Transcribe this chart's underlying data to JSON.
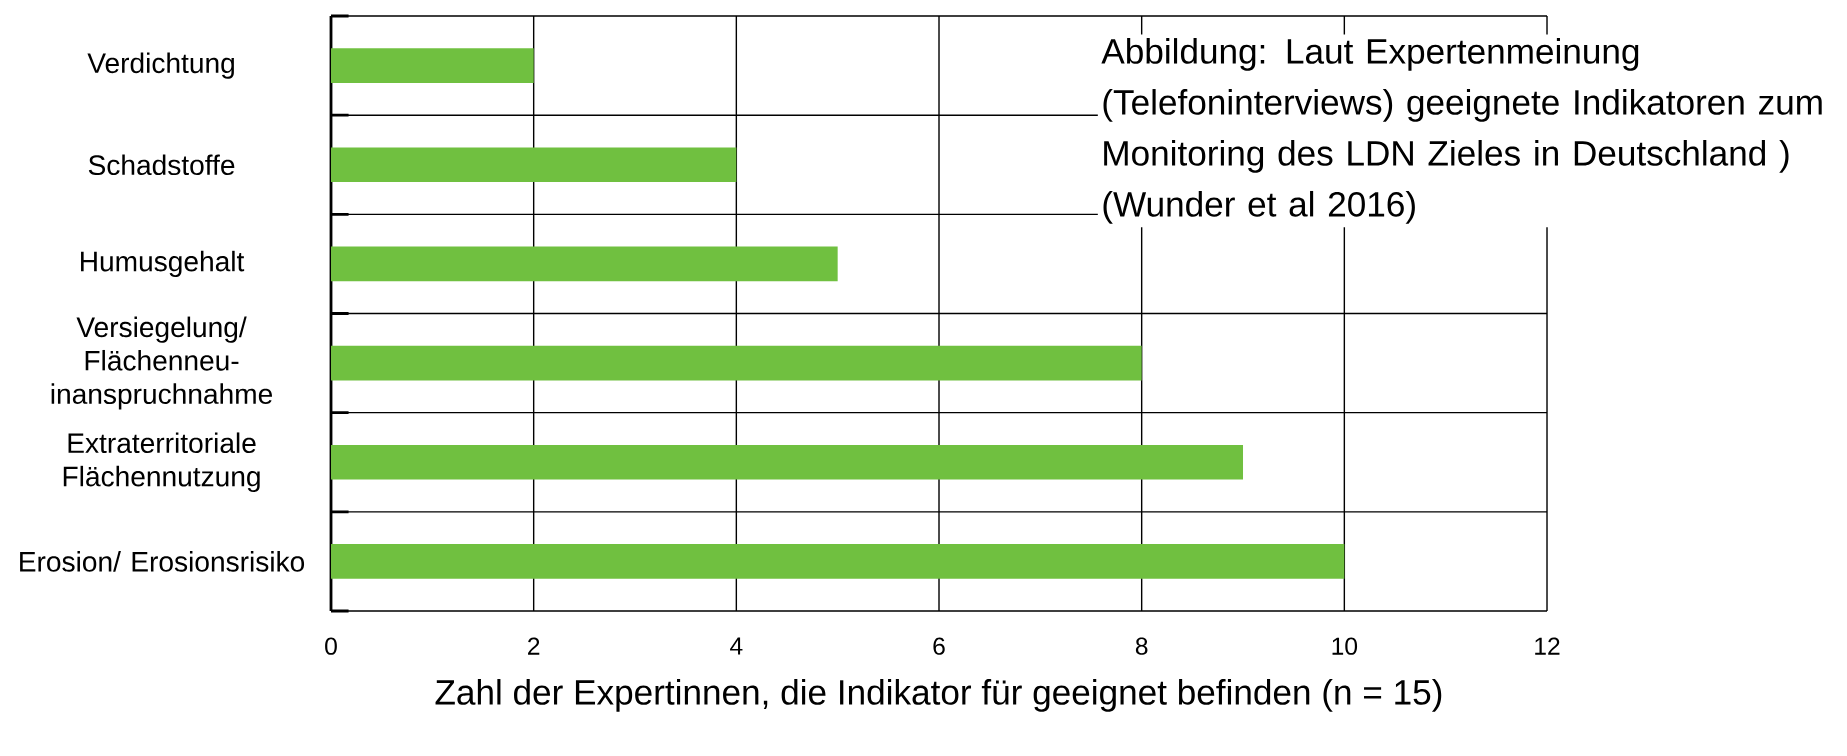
{
  "chart_data": {
    "type": "bar",
    "orientation": "horizontal",
    "categories": [
      "Verdichtung",
      "Schadstoffe",
      "Humusgehalt",
      "Versiegelung/ Flächenneu-inanspruchnahme",
      "Extraterritoriale Flächennutzung",
      "Erosion/ Erosionsrisiko"
    ],
    "values": [
      2,
      4,
      5,
      8,
      9,
      10
    ],
    "color": "#70c040",
    "xlim": [
      0,
      12
    ],
    "xticks": [
      0,
      2,
      4,
      6,
      8,
      10,
      12
    ],
    "xlabel": "Zahl der Expertinnen, die Indikator für geeignet befinden (n = 15)",
    "grid": true,
    "annotations": [
      "Abbildung: Laut Expertenmeinung (Telefoninterviews) geeignete Indikatoren zum Monitoring des LDN Zieles in Deutschland ) (Wunder et al 2016)"
    ]
  }
}
